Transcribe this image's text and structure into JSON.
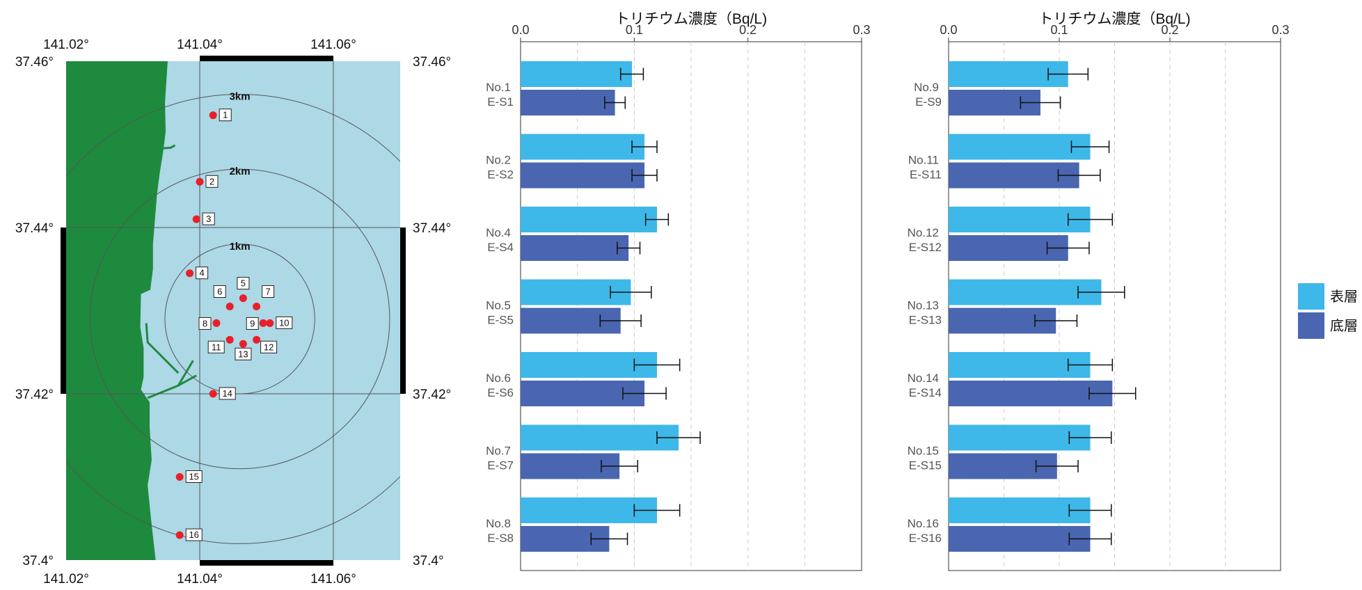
{
  "colors": {
    "surface": "#3DB8E8",
    "bottom": "#4A66B0",
    "sea": "#ADD8E6",
    "land": "#1E8A3E",
    "point": "#E8202A",
    "grid": "#555555"
  },
  "map": {
    "lon_range": [
      141.02,
      141.07
    ],
    "lat_range": [
      37.4,
      37.46
    ],
    "lon_ticks": [
      "141.02°",
      "141.04°",
      "141.06°"
    ],
    "lat_ticks": [
      "37.46°",
      "37.44°",
      "37.42°",
      "37.4°"
    ],
    "rings": [
      {
        "label": "1km",
        "radius_km": 1
      },
      {
        "label": "2km",
        "radius_km": 2
      },
      {
        "label": "3km",
        "radius_km": 3
      }
    ],
    "center": {
      "lon": 141.046,
      "lat": 37.429
    },
    "points": [
      {
        "label": "1",
        "lon": 141.042,
        "lat": 37.4535
      },
      {
        "label": "2",
        "lon": 141.04,
        "lat": 37.4455
      },
      {
        "label": "3",
        "lon": 141.0395,
        "lat": 37.441
      },
      {
        "label": "4",
        "lon": 141.0385,
        "lat": 37.4345
      },
      {
        "label": "5",
        "lon": 141.0465,
        "lat": 37.4315
      },
      {
        "label": "6",
        "lon": 141.0445,
        "lat": 37.4305
      },
      {
        "label": "7",
        "lon": 141.0485,
        "lat": 37.4305
      },
      {
        "label": "8",
        "lon": 141.0425,
        "lat": 37.4285
      },
      {
        "label": "9",
        "lon": 141.0495,
        "lat": 37.4285
      },
      {
        "label": "10",
        "lon": 141.0505,
        "lat": 37.4285
      },
      {
        "label": "11",
        "lon": 141.0445,
        "lat": 37.4265
      },
      {
        "label": "12",
        "lon": 141.0485,
        "lat": 37.4265
      },
      {
        "label": "13",
        "lon": 141.0465,
        "lat": 37.426
      },
      {
        "label": "14",
        "lon": 141.042,
        "lat": 37.42
      },
      {
        "label": "15",
        "lon": 141.037,
        "lat": 37.41
      },
      {
        "label": "16",
        "lon": 141.037,
        "lat": 37.403
      }
    ]
  },
  "chart_data": [
    {
      "type": "bar",
      "orientation": "horizontal",
      "title": "トリチウム濃度（Bq/L)",
      "xlim": [
        0,
        0.3
      ],
      "xticks": [
        "0.0",
        "0.1",
        "0.2",
        "0.3"
      ],
      "grid": true,
      "groups": [
        {
          "no": "No.1",
          "es": "E-S1",
          "surface": 0.098,
          "surface_err": 0.01,
          "bottom": 0.083,
          "bottom_err": 0.009
        },
        {
          "no": "No.2",
          "es": "E-S2",
          "surface": 0.109,
          "surface_err": 0.011,
          "bottom": 0.109,
          "bottom_err": 0.011
        },
        {
          "no": "No.4",
          "es": "E-S4",
          "surface": 0.12,
          "surface_err": 0.01,
          "bottom": 0.095,
          "bottom_err": 0.01
        },
        {
          "no": "No.5",
          "es": "E-S5",
          "surface": 0.097,
          "surface_err": 0.018,
          "bottom": 0.088,
          "bottom_err": 0.018
        },
        {
          "no": "No.6",
          "es": "E-S6",
          "surface": 0.12,
          "surface_err": 0.02,
          "bottom": 0.109,
          "bottom_err": 0.019
        },
        {
          "no": "No.7",
          "es": "E-S7",
          "surface": 0.139,
          "surface_err": 0.019,
          "bottom": 0.087,
          "bottom_err": 0.016
        },
        {
          "no": "No.8",
          "es": "E-S8",
          "surface": 0.12,
          "surface_err": 0.02,
          "bottom": 0.078,
          "bottom_err": 0.016
        }
      ]
    },
    {
      "type": "bar",
      "orientation": "horizontal",
      "title": "トリチウム濃度（Bq/L)",
      "xlim": [
        0,
        0.3
      ],
      "xticks": [
        "0.0",
        "0.1",
        "0.2",
        "0.3"
      ],
      "grid": true,
      "groups": [
        {
          "no": "No.9",
          "es": "E-S9",
          "surface": 0.108,
          "surface_err": 0.018,
          "bottom": 0.083,
          "bottom_err": 0.018
        },
        {
          "no": "No.11",
          "es": "E-S11",
          "surface": 0.128,
          "surface_err": 0.017,
          "bottom": 0.118,
          "bottom_err": 0.019
        },
        {
          "no": "No.12",
          "es": "E-S12",
          "surface": 0.128,
          "surface_err": 0.02,
          "bottom": 0.108,
          "bottom_err": 0.019
        },
        {
          "no": "No.13",
          "es": "E-S13",
          "surface": 0.138,
          "surface_err": 0.021,
          "bottom": 0.097,
          "bottom_err": 0.019
        },
        {
          "no": "No.14",
          "es": "E-S14",
          "surface": 0.128,
          "surface_err": 0.02,
          "bottom": 0.148,
          "bottom_err": 0.021
        },
        {
          "no": "No.15",
          "es": "E-S15",
          "surface": 0.128,
          "surface_err": 0.019,
          "bottom": 0.098,
          "bottom_err": 0.019
        },
        {
          "no": "No.16",
          "es": "E-S16",
          "surface": 0.128,
          "surface_err": 0.019,
          "bottom": 0.128,
          "bottom_err": 0.019
        }
      ]
    }
  ],
  "legend": {
    "placement": "right",
    "items": [
      {
        "label": "表層",
        "series": "surface"
      },
      {
        "label": "底層",
        "series": "bottom"
      }
    ]
  }
}
